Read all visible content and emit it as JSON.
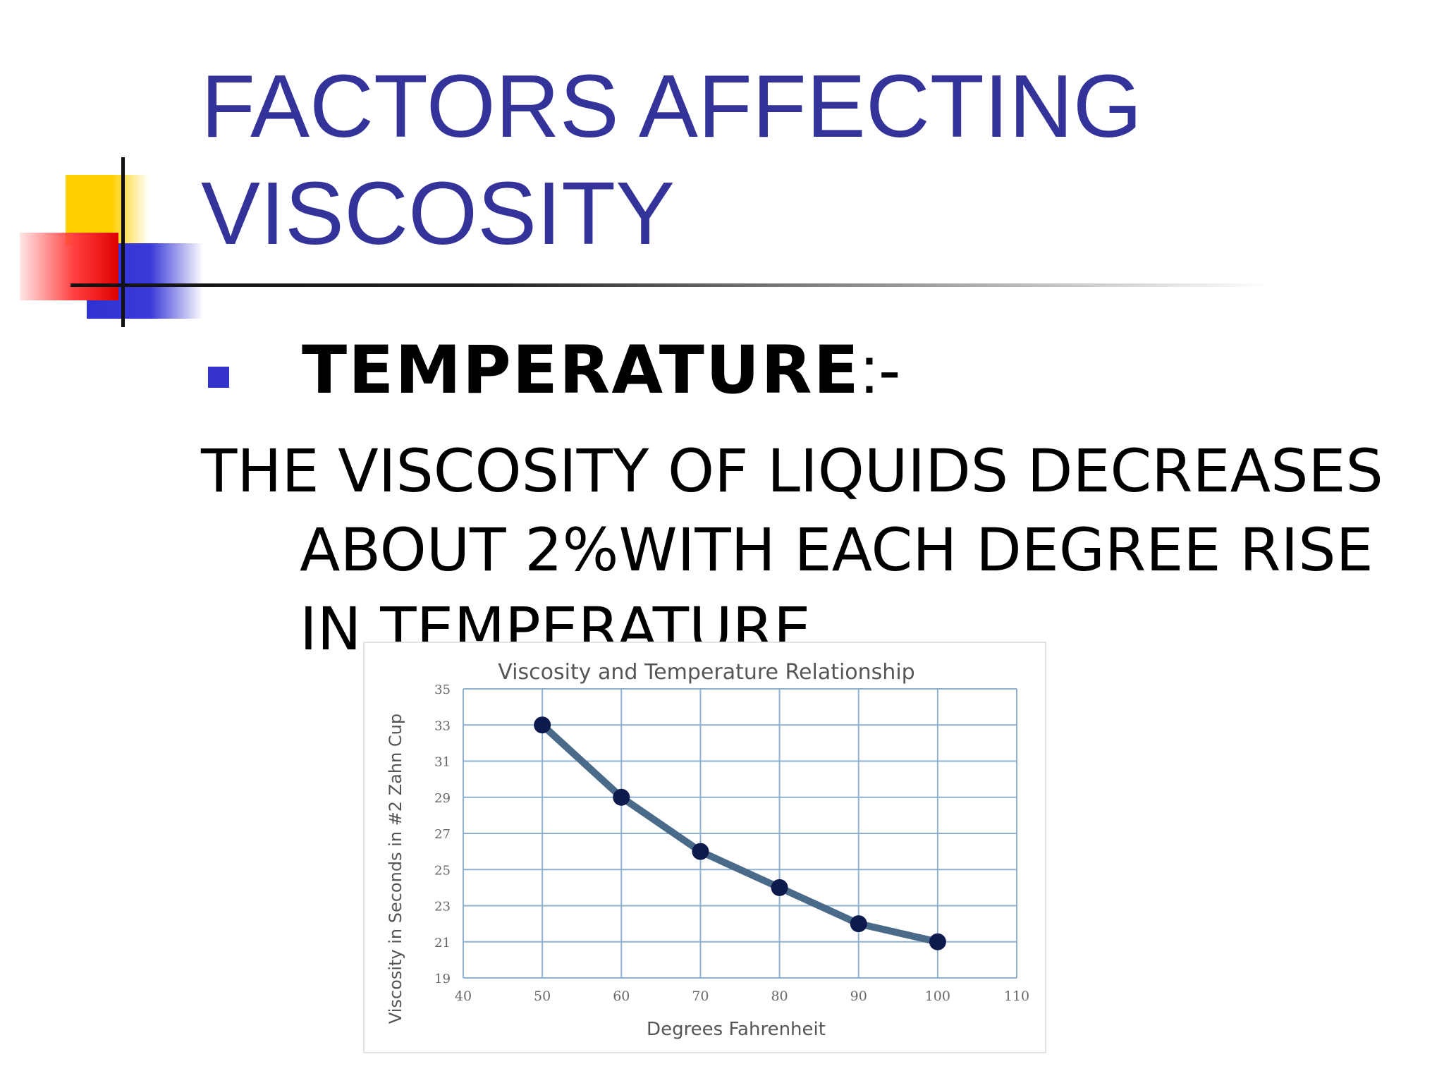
{
  "slide": {
    "title_lines": [
      "FACTORS AFFECTING",
      "VISCOSITY"
    ],
    "subheading": {
      "bold": "TEMPERATURE",
      "suffix": ":-"
    },
    "paragraph_lines": [
      "THE VISCOSITY OF LIQUIDS DECREASES",
      "ABOUT 2%WITH EACH DEGREE RISE",
      "IN TEMPERATURE."
    ],
    "colors": {
      "title": "#333399",
      "bullet": "#3333cc",
      "series_line": "#4a6a8a",
      "marker": "#0d1a4d"
    }
  },
  "chart_data": {
    "type": "line",
    "title": "Viscosity and Temperature Relationship",
    "xlabel": "Degrees Fahrenheit",
    "ylabel": "Viscosity in Seconds in #2 Zahn Cup",
    "xlim": [
      40,
      110
    ],
    "ylim": [
      19,
      35
    ],
    "x_ticks": [
      40,
      50,
      60,
      70,
      80,
      90,
      100,
      110
    ],
    "y_ticks": [
      19,
      21,
      23,
      25,
      27,
      29,
      31,
      33,
      35
    ],
    "grid": true,
    "legend": "none",
    "series": [
      {
        "x": [
          50,
          60,
          70,
          80,
          90,
          100
        ],
        "y": [
          33,
          29,
          26,
          24,
          22,
          21
        ]
      }
    ]
  }
}
